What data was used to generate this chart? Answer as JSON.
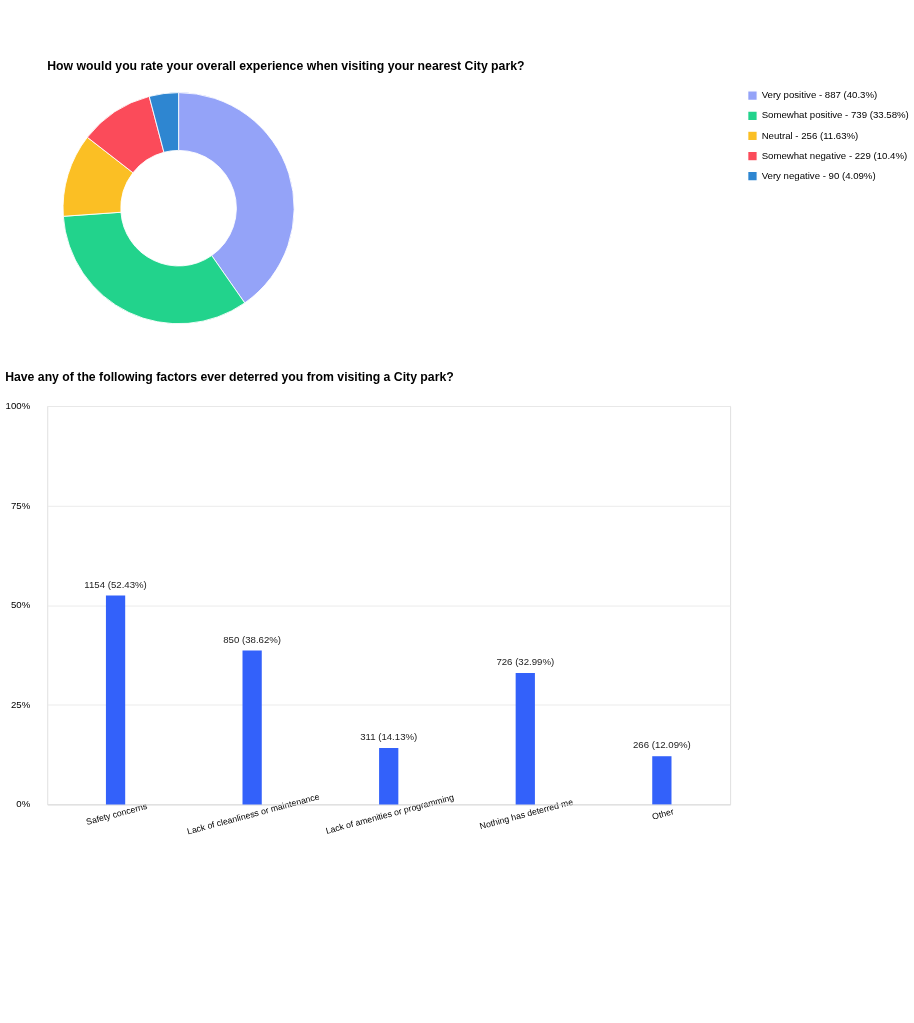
{
  "chart_data": [
    {
      "type": "donut",
      "title": "How would you rate your overall experience when visiting your nearest City park?",
      "categories": [
        "Very positive - 887 (40.3%)",
        "Somewhat positive - 739 (33.58%)",
        "Neutral - 256 (11.63%)",
        "Somewhat negative - 229 (10.4%)",
        "Very negative - 90 (4.09%)"
      ],
      "values": [
        40.3,
        33.58,
        11.63,
        10.4,
        4.09
      ],
      "colors": [
        "#94a3f8",
        "#22d38c",
        "#fbbf24",
        "#fb4b5a",
        "#2e86d1"
      ],
      "legend": "right"
    },
    {
      "type": "bar",
      "title": "Have any of the following factors ever deterred you from visiting a City park?",
      "categories": [
        "Safety concerns",
        "Lack of cleanliness or maintenance",
        "Lack of amenities or programming",
        "Nothing has deterred me",
        "Other"
      ],
      "values": [
        52.43,
        38.62,
        14.13,
        32.99,
        12.09
      ],
      "color": "#3361fa",
      "value_labels": [
        "1154 (52.43%)",
        "850 (38.62%)",
        "311 (14.13%)",
        "726 (32.99%)",
        "266 (12.09%)"
      ],
      "ylim": [
        0,
        100
      ],
      "yticks": [
        {
          "value": 0,
          "label": "0%"
        },
        {
          "value": 25,
          "label": "25%"
        },
        {
          "value": 50,
          "label": "50%"
        },
        {
          "value": 75,
          "label": "75%"
        },
        {
          "value": 100,
          "label": "100%"
        }
      ],
      "grid": "y"
    }
  ]
}
